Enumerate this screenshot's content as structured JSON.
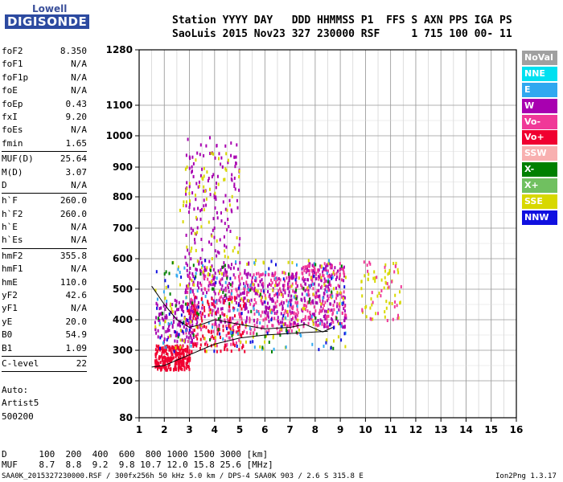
{
  "logo": {
    "line1": "Lowell",
    "line2": "DIGISONDE"
  },
  "header": {
    "line1": "Station YYYY DAY   DDD HHMMSS P1  FFS S AXN PPS IGA PS",
    "line2": "SaoLuis 2015 Nov23 327 230000 RSF     1 715 100 00- 11"
  },
  "params": [
    [
      {
        "k": "foF2",
        "v": "8.350"
      },
      {
        "k": "foF1",
        "v": "N/A"
      },
      {
        "k": "foF1p",
        "v": "N/A"
      },
      {
        "k": "foE",
        "v": "N/A"
      },
      {
        "k": "foEp",
        "v": "0.43"
      },
      {
        "k": "fxI",
        "v": "9.20"
      },
      {
        "k": "foEs",
        "v": "N/A"
      },
      {
        "k": "fmin",
        "v": "1.65"
      }
    ],
    [
      {
        "k": "MUF(D)",
        "v": "25.64"
      },
      {
        "k": "M(D)",
        "v": "3.07"
      },
      {
        "k": "D",
        "v": "N/A"
      }
    ],
    [
      {
        "k": "h`F",
        "v": "260.0"
      },
      {
        "k": "h`F2",
        "v": "260.0"
      },
      {
        "k": "h`E",
        "v": "N/A"
      },
      {
        "k": "h`Es",
        "v": "N/A"
      }
    ],
    [
      {
        "k": "hmF2",
        "v": "355.8"
      },
      {
        "k": "hmF1",
        "v": "N/A"
      },
      {
        "k": "hmE",
        "v": "110.0"
      },
      {
        "k": "yF2",
        "v": "42.6"
      },
      {
        "k": "yF1",
        "v": "N/A"
      },
      {
        "k": "yE",
        "v": "20.0"
      },
      {
        "k": "B0",
        "v": "54.9"
      },
      {
        "k": "B1",
        "v": "1.09"
      }
    ],
    [
      {
        "k": "C-level",
        "v": "22"
      }
    ]
  ],
  "auto": {
    "line1": "Auto:",
    "line2": "Artist5",
    "line3": "500200"
  },
  "legend": [
    {
      "name": "NoVal",
      "color": "#a0a0a0"
    },
    {
      "name": "NNE",
      "color": "#00e0f0"
    },
    {
      "name": "E",
      "color": "#30a8f0"
    },
    {
      "name": "W",
      "color": "#a800b0"
    },
    {
      "name": "Vo-",
      "color": "#f03898"
    },
    {
      "name": "Vo+",
      "color": "#f00030"
    },
    {
      "name": "SSW",
      "color": "#f8b0b0"
    },
    {
      "name": "X-",
      "color": "#008000"
    },
    {
      "name": "X+",
      "color": "#70c060"
    },
    {
      "name": "SSE",
      "color": "#d8d800"
    },
    {
      "name": "NNW",
      "color": "#1010e0"
    }
  ],
  "footer": {
    "d_row": "D      100  200  400  600  800 1000 1500 3000 [km]",
    "muf_row": "MUF    8.7  8.8  9.2  9.8 10.7 12.0 15.8 25.6 [MHz]",
    "bottom": "SAA0K_2015327230000.RSF / 300fx256h 50 kHz 5.0 km / DPS-4 SAA0K 903 / 2.6 S 315.8 E",
    "version": "Ion2Png 1.3.17"
  },
  "chart_data": {
    "type": "scatter",
    "x_ticks": [
      "1",
      "2",
      "3",
      "4",
      "5",
      "6",
      "7",
      "8",
      "9",
      "10",
      "11",
      "12",
      "13",
      "14",
      "15",
      "16"
    ],
    "y_ticks": [
      "80",
      "200",
      "300",
      "400",
      "500",
      "600",
      "700",
      "800",
      "900",
      "1000",
      "1100",
      "1280"
    ],
    "xlim": [
      1,
      16
    ],
    "ylim": [
      80,
      1280
    ],
    "y_scale": "approximately logarithmic (virtual height)",
    "grid": true,
    "clusters": [
      {
        "x": [
          1.6,
          3.0
        ],
        "y": [
          240,
          320
        ],
        "color": "#f00030",
        "n": 260
      },
      {
        "x": [
          1.6,
          3.2
        ],
        "y": [
          330,
          470
        ],
        "color": "#a800b0",
        "n": 120
      },
      {
        "x": [
          2.8,
          5.4
        ],
        "y": [
          380,
          600
        ],
        "color": "#a800b0",
        "n": 200
      },
      {
        "x": [
          2.8,
          5.4
        ],
        "y": [
          320,
          560
        ],
        "color": "#f03898",
        "n": 150
      },
      {
        "x": [
          2.8,
          5.2
        ],
        "y": [
          300,
          480
        ],
        "color": "#f00030",
        "n": 120
      },
      {
        "x": [
          2.8,
          5.0
        ],
        "y": [
          550,
          1000
        ],
        "color": "#a800b0",
        "n": 150
      },
      {
        "x": [
          2.6,
          5.0
        ],
        "y": [
          600,
          950
        ],
        "color": "#d8d800",
        "n": 60
      },
      {
        "x": [
          5.4,
          7.3
        ],
        "y": [
          360,
          560
        ],
        "color": "#f03898",
        "n": 180
      },
      {
        "x": [
          5.4,
          7.3
        ],
        "y": [
          380,
          560
        ],
        "color": "#a800b0",
        "n": 100
      },
      {
        "x": [
          7.4,
          9.2
        ],
        "y": [
          380,
          590
        ],
        "color": "#a800b0",
        "n": 170
      },
      {
        "x": [
          7.4,
          9.2
        ],
        "y": [
          380,
          590
        ],
        "color": "#f03898",
        "n": 140
      },
      {
        "x": [
          1.6,
          9.2
        ],
        "y": [
          300,
          600
        ],
        "color": "#d8d800",
        "n": 120
      },
      {
        "x": [
          1.6,
          9.2
        ],
        "y": [
          300,
          600
        ],
        "color": "#30a8f0",
        "n": 80
      },
      {
        "x": [
          1.6,
          9.2
        ],
        "y": [
          300,
          600
        ],
        "color": "#008000",
        "n": 60
      },
      {
        "x": [
          1.6,
          9.2
        ],
        "y": [
          300,
          600
        ],
        "color": "#1010e0",
        "n": 60
      },
      {
        "x": [
          9.8,
          11.4
        ],
        "y": [
          400,
          600
        ],
        "color": "#d8d800",
        "n": 50
      },
      {
        "x": [
          9.8,
          11.4
        ],
        "y": [
          400,
          600
        ],
        "color": "#f03898",
        "n": 30
      }
    ],
    "trace_upper": [
      [
        1.5,
        510
      ],
      [
        2.0,
        450
      ],
      [
        2.5,
        400
      ],
      [
        3.0,
        375
      ],
      [
        3.5,
        385
      ],
      [
        4.0,
        400
      ],
      [
        5.0,
        385
      ],
      [
        6.0,
        370
      ],
      [
        7.0,
        375
      ],
      [
        7.6,
        385
      ],
      [
        8.3,
        360
      ],
      [
        8.7,
        375
      ]
    ],
    "trace_lower": [
      [
        1.5,
        245
      ],
      [
        2.0,
        250
      ],
      [
        3.0,
        285
      ],
      [
        4.0,
        320
      ],
      [
        5.0,
        340
      ],
      [
        6.0,
        350
      ],
      [
        7.0,
        355
      ],
      [
        8.0,
        360
      ],
      [
        8.5,
        362
      ]
    ]
  }
}
